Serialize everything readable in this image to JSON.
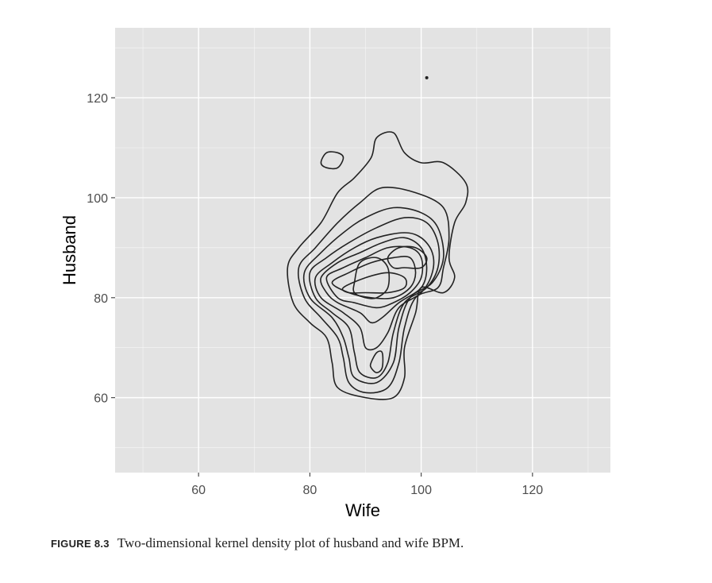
{
  "chart_data": {
    "type": "contour",
    "xlabel": "Wife",
    "ylabel": "Husband",
    "xlim": [
      45,
      134
    ],
    "ylim": [
      45,
      134
    ],
    "x_ticks": [
      60,
      80,
      100,
      120
    ],
    "y_ticks": [
      60,
      80,
      100,
      120
    ],
    "x_tick_labels": [
      "60",
      "80",
      "100",
      "120"
    ],
    "y_tick_labels": [
      "60",
      "80",
      "100",
      "120"
    ],
    "grid": true,
    "legend": "none",
    "colors": {
      "panel": "#e3e3e3",
      "grid": "#ffffff",
      "contour": "#222222"
    },
    "contours": [
      {
        "level": 1,
        "points": [
          [
            76,
            86
          ],
          [
            78,
            90
          ],
          [
            82,
            95
          ],
          [
            85,
            101
          ],
          [
            88,
            104
          ],
          [
            91,
            108
          ],
          [
            92,
            112
          ],
          [
            95,
            113
          ],
          [
            97,
            109
          ],
          [
            100,
            107
          ],
          [
            104,
            107
          ],
          [
            108,
            103
          ],
          [
            108,
            99
          ],
          [
            106,
            95
          ],
          [
            105,
            88
          ],
          [
            106,
            84
          ],
          [
            104,
            81
          ],
          [
            100,
            82
          ],
          [
            99,
            77
          ],
          [
            97,
            70
          ],
          [
            97,
            64
          ],
          [
            95,
            60
          ],
          [
            90,
            60
          ],
          [
            85,
            62
          ],
          [
            84,
            67
          ],
          [
            83,
            72
          ],
          [
            80,
            75
          ],
          [
            77,
            79
          ]
        ]
      },
      {
        "level": 2,
        "points": [
          [
            78,
            86
          ],
          [
            81,
            90
          ],
          [
            85,
            95
          ],
          [
            89,
            99
          ],
          [
            93,
            102
          ],
          [
            99,
            101
          ],
          [
            104,
            98
          ],
          [
            105,
            92
          ],
          [
            104,
            86
          ],
          [
            103,
            82
          ],
          [
            99,
            80
          ],
          [
            97,
            74
          ],
          [
            96,
            67
          ],
          [
            94,
            62
          ],
          [
            90,
            61
          ],
          [
            87,
            63
          ],
          [
            86,
            68
          ],
          [
            85,
            72
          ],
          [
            82,
            76
          ],
          [
            79,
            80
          ]
        ]
      },
      {
        "level": 3,
        "points": [
          [
            79,
            85
          ],
          [
            82,
            89
          ],
          [
            86,
            93
          ],
          [
            90,
            96
          ],
          [
            95,
            98
          ],
          [
            100,
            97
          ],
          [
            103,
            94
          ],
          [
            104,
            88
          ],
          [
            102,
            83
          ],
          [
            98,
            80
          ],
          [
            96,
            74
          ],
          [
            95,
            67
          ],
          [
            92,
            63
          ],
          [
            88,
            64
          ],
          [
            87,
            68
          ],
          [
            86,
            72
          ],
          [
            84,
            76
          ],
          [
            80,
            80
          ]
        ]
      },
      {
        "level": 4,
        "points": [
          [
            80,
            85
          ],
          [
            83,
            88
          ],
          [
            87,
            91
          ],
          [
            92,
            94
          ],
          [
            97,
            96
          ],
          [
            101,
            95
          ],
          [
            103,
            91
          ],
          [
            103,
            86
          ],
          [
            101,
            82
          ],
          [
            97,
            79
          ],
          [
            95,
            73
          ],
          [
            94,
            67
          ],
          [
            92,
            64
          ],
          [
            89,
            65
          ],
          [
            88,
            69
          ],
          [
            87,
            74
          ],
          [
            84,
            77
          ],
          [
            81,
            80
          ]
        ]
      },
      {
        "level": 5,
        "points": [
          [
            81,
            84
          ],
          [
            84,
            87
          ],
          [
            88,
            90
          ],
          [
            92,
            92
          ],
          [
            97,
            93
          ],
          [
            100,
            92
          ],
          [
            102,
            89
          ],
          [
            102,
            85
          ],
          [
            100,
            81
          ],
          [
            96,
            78
          ],
          [
            94,
            73
          ],
          [
            92,
            70
          ],
          [
            90,
            70
          ],
          [
            89,
            74
          ],
          [
            86,
            77
          ],
          [
            82,
            80
          ]
        ]
      },
      {
        "level": 6,
        "points": [
          [
            82,
            84
          ],
          [
            85,
            87
          ],
          [
            89,
            89
          ],
          [
            93,
            91
          ],
          [
            97,
            92
          ],
          [
            100,
            90
          ],
          [
            101,
            86
          ],
          [
            100,
            82
          ],
          [
            96,
            79
          ],
          [
            93,
            76
          ],
          [
            91,
            75
          ],
          [
            89,
            77
          ],
          [
            85,
            79
          ],
          [
            83,
            81
          ]
        ]
      },
      {
        "level": 7,
        "points": [
          [
            83,
            84
          ],
          [
            86,
            86
          ],
          [
            90,
            88
          ],
          [
            94,
            90
          ],
          [
            98,
            90
          ],
          [
            100,
            88
          ],
          [
            100,
            84
          ],
          [
            98,
            81
          ],
          [
            95,
            79
          ],
          [
            92,
            78
          ],
          [
            88,
            79
          ],
          [
            85,
            80
          ]
        ]
      },
      {
        "level": 8,
        "points": [
          [
            84,
            83
          ],
          [
            87,
            85
          ],
          [
            91,
            87
          ],
          [
            95,
            88
          ],
          [
            98,
            88
          ],
          [
            99,
            85
          ],
          [
            98,
            82
          ],
          [
            95,
            80
          ],
          [
            91,
            80
          ],
          [
            87,
            81
          ]
        ]
      },
      {
        "level": 9,
        "points": [
          [
            86,
            82
          ],
          [
            90,
            84
          ],
          [
            94,
            85
          ],
          [
            97,
            84
          ],
          [
            97,
            82
          ],
          [
            94,
            81
          ],
          [
            90,
            81
          ],
          [
            87,
            81
          ]
        ]
      },
      {
        "level": 10,
        "points": [
          [
            88,
            83
          ],
          [
            89,
            87
          ],
          [
            92,
            88
          ],
          [
            94,
            86
          ],
          [
            94,
            82
          ],
          [
            92,
            80
          ],
          [
            90,
            80
          ],
          [
            88,
            81
          ]
        ]
      },
      {
        "level": 10,
        "points": [
          [
            94,
            88
          ],
          [
            96,
            90
          ],
          [
            99,
            90
          ],
          [
            101,
            88
          ],
          [
            100,
            86
          ],
          [
            97,
            86
          ],
          [
            95,
            86
          ]
        ]
      },
      {
        "level": 1,
        "points": [
          [
            82,
            107
          ],
          [
            83,
            109
          ],
          [
            85,
            109
          ],
          [
            86,
            108
          ],
          [
            85,
            106
          ],
          [
            83,
            106
          ]
        ]
      },
      {
        "level": 4,
        "points": [
          [
            91,
            67
          ],
          [
            92,
            69
          ],
          [
            93,
            69
          ],
          [
            93,
            66
          ],
          [
            92,
            65
          ],
          [
            91,
            66
          ]
        ]
      }
    ],
    "points": [
      [
        101,
        124
      ]
    ]
  },
  "caption": {
    "label": "FIGURE 8.3",
    "text": "Two-dimensional kernel density plot of husband and wife BPM."
  }
}
